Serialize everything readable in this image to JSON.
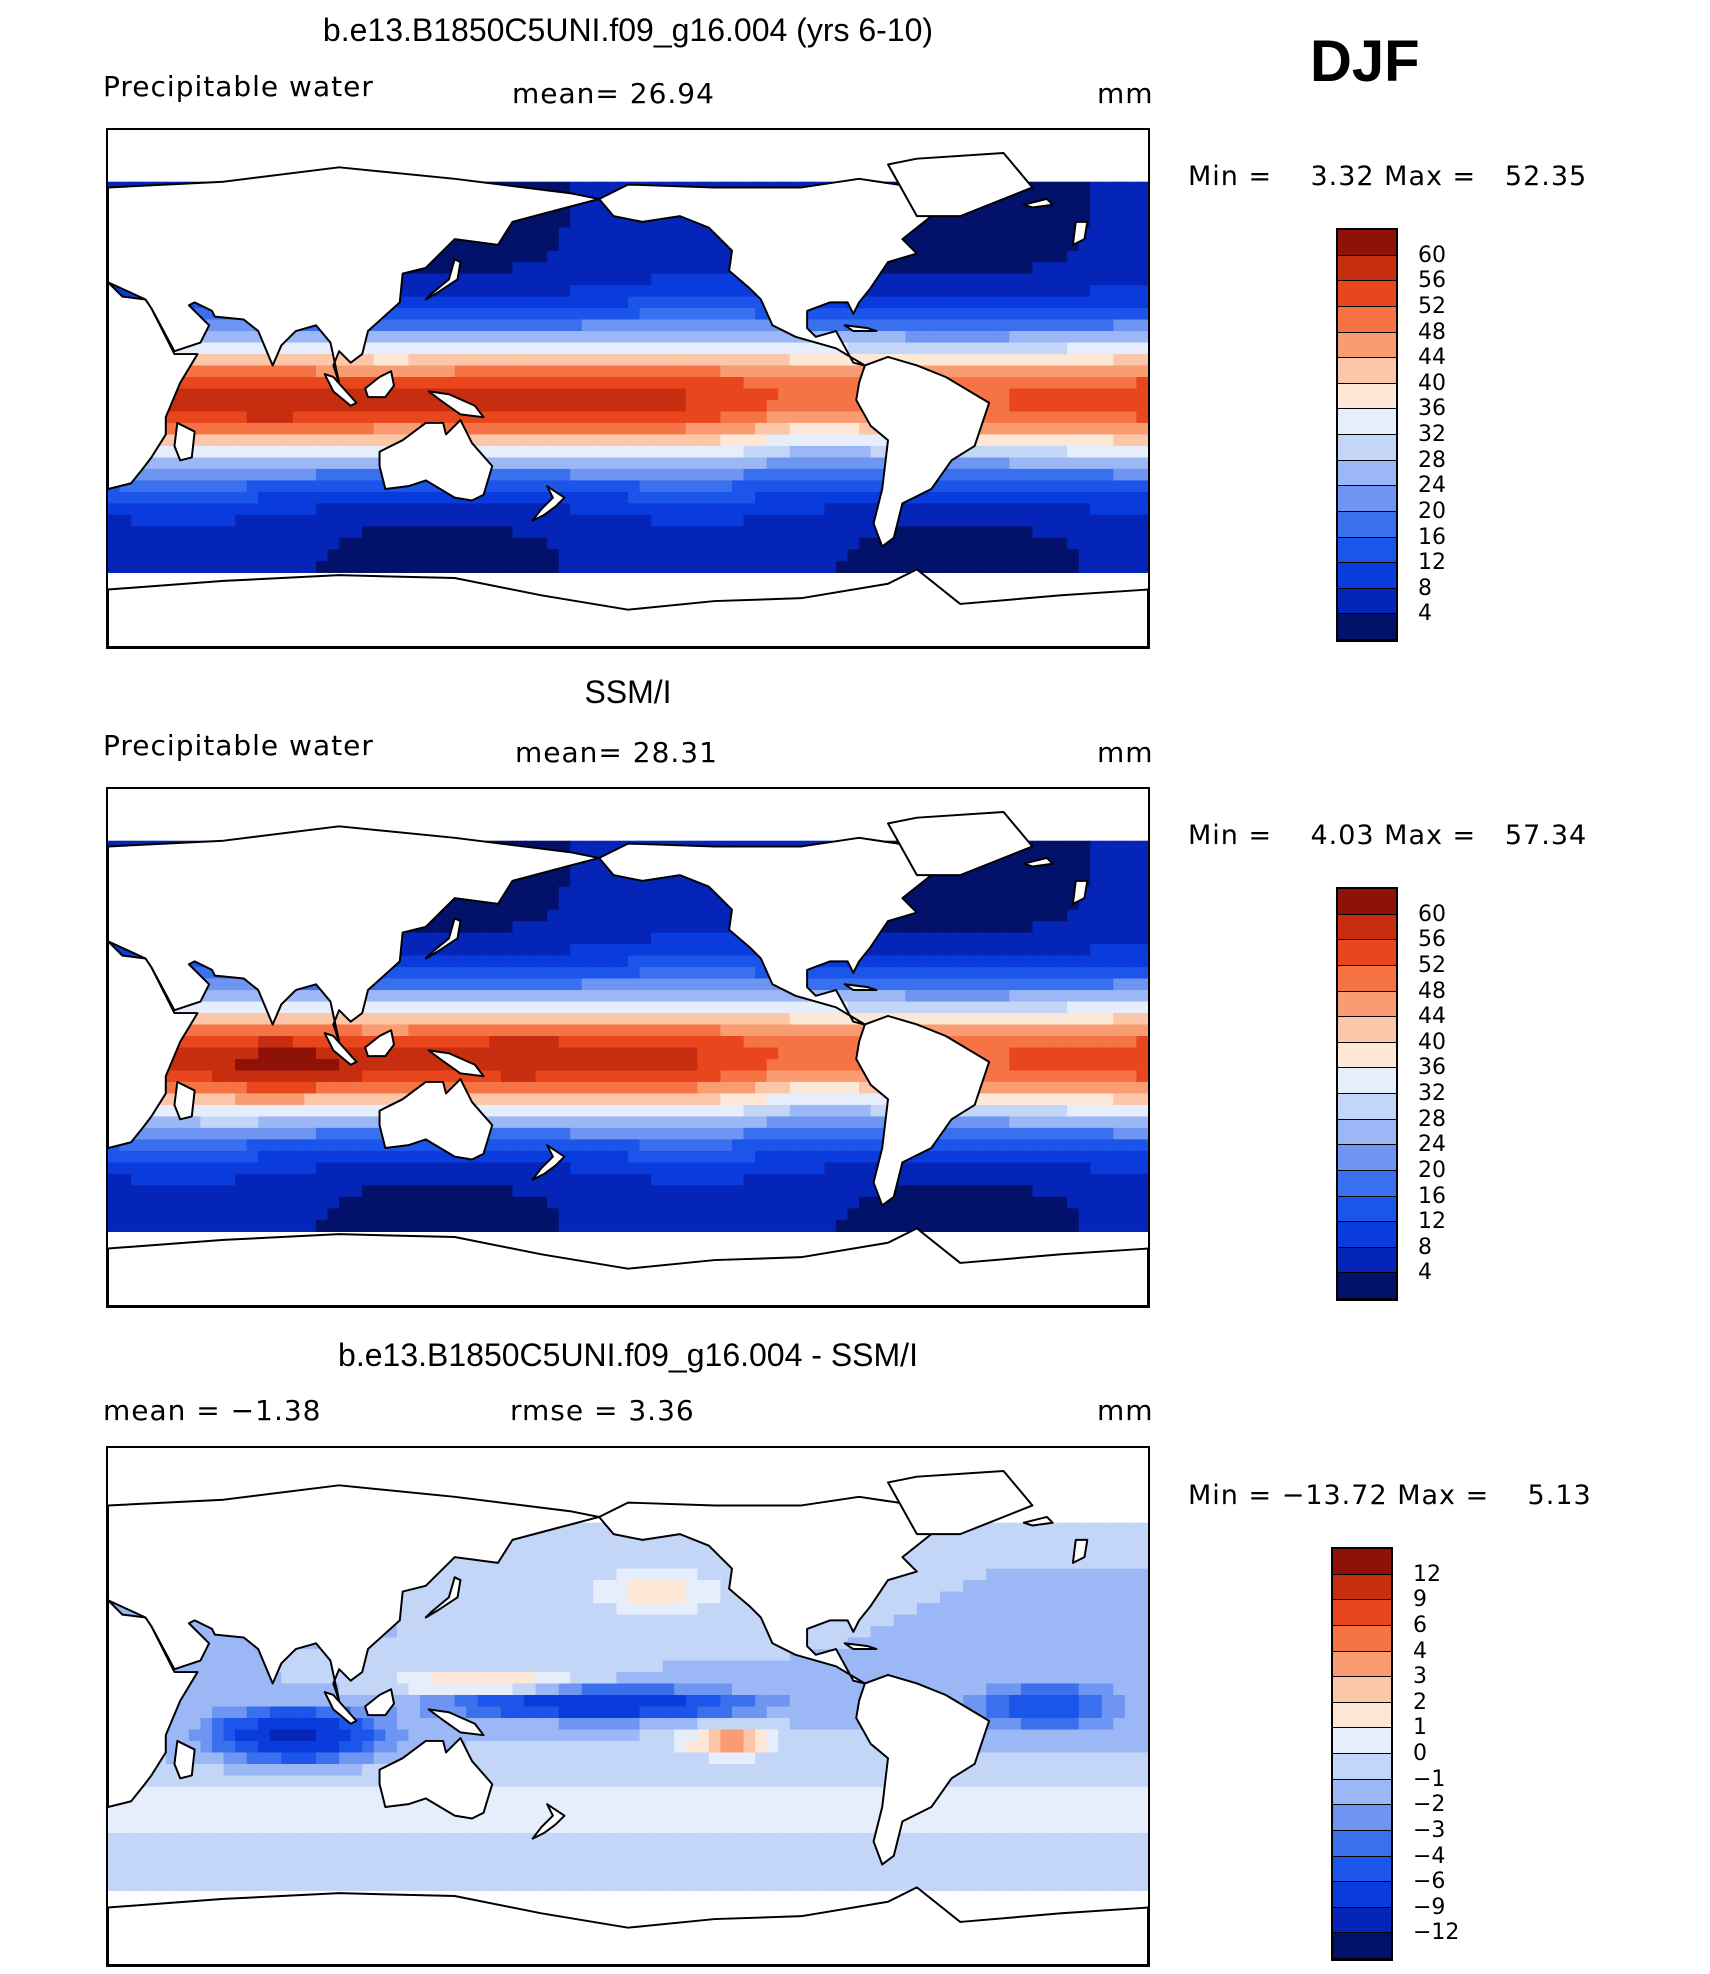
{
  "season": "DJF",
  "panels": [
    {
      "id": "model",
      "title": "b.e13.B1850C5UNI.f09_g16.004 (yrs 6-10)",
      "left_label": "Precipitable water",
      "center_label": "mean=   26.94",
      "units": "mm",
      "minmax": "Min =    3.32 Max =   52.35"
    },
    {
      "id": "obs",
      "title": "SSM/I",
      "left_label": "Precipitable water",
      "center_label": "mean=   28.31",
      "units": "mm",
      "minmax": "Min =    4.03 Max =   57.34"
    },
    {
      "id": "diff",
      "title": "b.e13.B1850C5UNI.f09_g16.004 - SSM/I",
      "left_label": "mean =   −1.38",
      "center_label": "rmse =    3.36",
      "units": "mm",
      "minmax": "Min = −13.72 Max =    5.13"
    }
  ],
  "chart_data": [
    {
      "type": "heatmap",
      "title": "b.e13.B1850C5UNI.f09_g16.004 (yrs 6-10)",
      "variable": "Precipitable water",
      "units": "mm",
      "mean": 26.94,
      "min": 3.32,
      "max": 52.35,
      "colorbar_levels": [
        4,
        8,
        12,
        16,
        20,
        24,
        28,
        32,
        36,
        40,
        44,
        48,
        52,
        56,
        60
      ],
      "colorbar_labels": [
        "60",
        "56",
        "52",
        "48",
        "44",
        "40",
        "36",
        "32",
        "28",
        "24",
        "20",
        "16",
        "12",
        "8",
        "4"
      ],
      "colors": [
        "#02116a",
        "#0525b8",
        "#0a3bdc",
        "#1b55ea",
        "#3a70ee",
        "#6e95f1",
        "#9bb7f5",
        "#c4d6f8",
        "#e6eefb",
        "#fde8d8",
        "#fcc6a8",
        "#fa9c72",
        "#f57345",
        "#e9461e",
        "#c72d0f",
        "#8e1208"
      ]
    },
    {
      "type": "heatmap",
      "title": "SSM/I",
      "variable": "Precipitable water",
      "units": "mm",
      "mean": 28.31,
      "min": 4.03,
      "max": 57.34,
      "colorbar_levels": [
        4,
        8,
        12,
        16,
        20,
        24,
        28,
        32,
        36,
        40,
        44,
        48,
        52,
        56,
        60
      ],
      "colorbar_labels": [
        "60",
        "56",
        "52",
        "48",
        "44",
        "40",
        "36",
        "32",
        "28",
        "24",
        "20",
        "16",
        "12",
        "8",
        "4"
      ],
      "colors": [
        "#02116a",
        "#0525b8",
        "#0a3bdc",
        "#1b55ea",
        "#3a70ee",
        "#6e95f1",
        "#9bb7f5",
        "#c4d6f8",
        "#e6eefb",
        "#fde8d8",
        "#fcc6a8",
        "#fa9c72",
        "#f57345",
        "#e9461e",
        "#c72d0f",
        "#8e1208"
      ]
    },
    {
      "type": "heatmap",
      "title": "b.e13.B1850C5UNI.f09_g16.004 - SSM/I",
      "units": "mm",
      "mean": -1.38,
      "rmse": 3.36,
      "min": -13.72,
      "max": 5.13,
      "colorbar_levels": [
        -12,
        -9,
        -6,
        -4,
        -3,
        -2,
        -1,
        0,
        1,
        2,
        3,
        4,
        6,
        9,
        12
      ],
      "colorbar_labels": [
        "12",
        "9",
        "6",
        "4",
        "3",
        "2",
        "1",
        "0",
        "−1",
        "−2",
        "−3",
        "−4",
        "−6",
        "−9",
        "−12"
      ],
      "colors": [
        "#02116a",
        "#0525b8",
        "#0a3bdc",
        "#1b55ea",
        "#3a70ee",
        "#6e95f1",
        "#9bb7f5",
        "#c4d6f8",
        "#e6eefb",
        "#fde8d8",
        "#fcc6a8",
        "#fa9c72",
        "#f57345",
        "#e9461e",
        "#c72d0f",
        "#8e1208"
      ]
    }
  ]
}
